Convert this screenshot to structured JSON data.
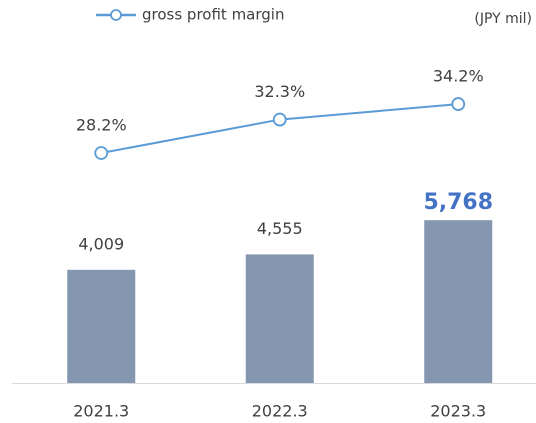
{
  "chart_data": {
    "type": "combo",
    "unit": "(JPY mil)",
    "categories": [
      "2021.3",
      "2022.3",
      "2023.3"
    ],
    "bars": {
      "values": [
        4009,
        4555,
        5768
      ],
      "value_labels": [
        "4,009",
        "4,555",
        "5,768"
      ],
      "color": "#8496b0"
    },
    "highlight_index": 2,
    "highlight_color": "#4472c4",
    "series": [
      {
        "name": "gross profit margin",
        "color": "#5b9bd5",
        "values": [
          28.2,
          32.3,
          34.2
        ],
        "value_labels": [
          "28.2%",
          "32.3%",
          "34.2%"
        ],
        "axis": "y2"
      }
    ],
    "ylim": [
      0,
      13000
    ],
    "y2lim": [
      0,
      45
    ],
    "legend": "top-left"
  }
}
